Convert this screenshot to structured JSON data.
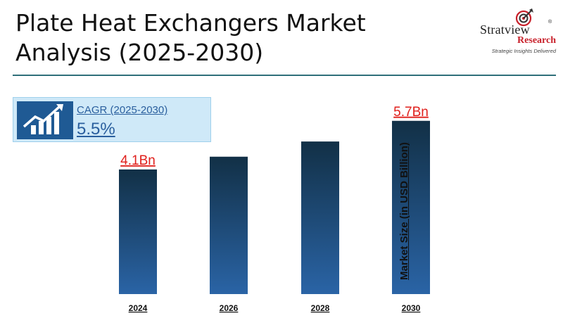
{
  "header": {
    "title": "Plate Heat Exchangers Market Analysis (2025-2030)"
  },
  "logo": {
    "name": "Stratview",
    "registered": "®",
    "sub": "Research",
    "tagline": "Strategic Insights Delivered",
    "icon": "target-arrow-icon"
  },
  "cagr": {
    "label": "CAGR (2025-2030)",
    "value": "5.5%",
    "icon": "growth-chart-icon"
  },
  "colors": {
    "bar_top": "#123046",
    "bar_bottom": "#2a64a6",
    "value_label": "#e0201c",
    "rule": "#2f6f7a"
  },
  "chart_data": {
    "type": "bar",
    "categories": [
      "2024",
      "2026",
      "2028",
      "2030"
    ],
    "values": [
      4.1,
      4.52,
      5.02,
      5.7
    ],
    "value_labels": [
      "4.1Bn",
      "",
      "",
      "5.7Bn"
    ],
    "ylabel": "Market Size (in USD Billion)",
    "ylim": [
      0,
      6.25
    ],
    "grid": false,
    "legend": "none"
  }
}
